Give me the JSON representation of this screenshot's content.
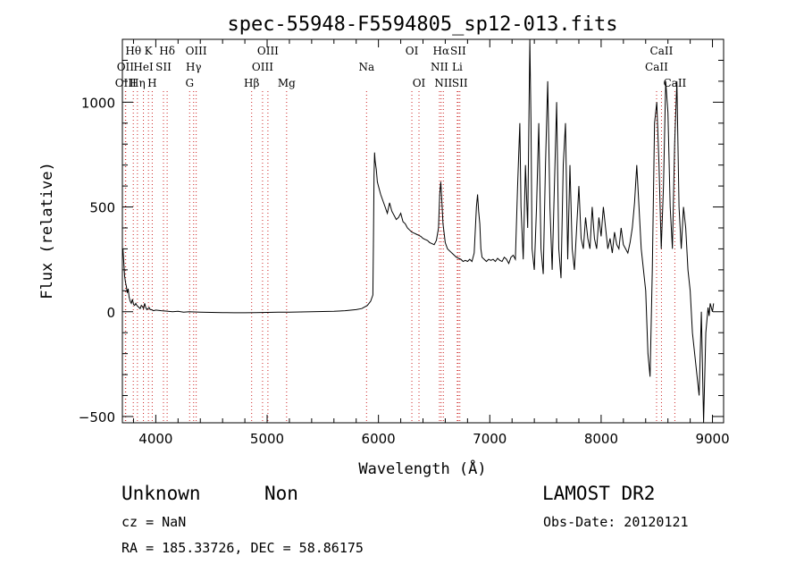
{
  "chart_data": {
    "type": "line",
    "title": "spec-55948-F5594805_sp12-013.fits",
    "xlabel": "Wavelength (Å)",
    "ylabel": "Flux (relative)",
    "xlim": [
      3700,
      9100
    ],
    "ylim": [
      -530,
      1300
    ],
    "x_ticks": [
      4000,
      5000,
      6000,
      7000,
      8000,
      9000
    ],
    "y_ticks": [
      -500,
      0,
      500,
      1000
    ],
    "x_tick_labels": [
      "4000",
      "5000",
      "6000",
      "7000",
      "8000",
      "9000"
    ],
    "y_tick_labels": [
      "−500",
      "0",
      "500",
      "1000"
    ],
    "grid": false,
    "legend": "none",
    "line_color": "#000000",
    "marker_color": "#cc2222",
    "spectrum_points": [
      [
        3705,
        300
      ],
      [
        3712,
        240
      ],
      [
        3720,
        170
      ],
      [
        3728,
        140
      ],
      [
        3736,
        120
      ],
      [
        3744,
        90
      ],
      [
        3752,
        110
      ],
      [
        3760,
        70
      ],
      [
        3770,
        50
      ],
      [
        3780,
        40
      ],
      [
        3790,
        60
      ],
      [
        3800,
        35
      ],
      [
        3810,
        30
      ],
      [
        3820,
        40
      ],
      [
        3830,
        30
      ],
      [
        3840,
        25
      ],
      [
        3850,
        20
      ],
      [
        3860,
        15
      ],
      [
        3870,
        30
      ],
      [
        3880,
        25
      ],
      [
        3890,
        15
      ],
      [
        3900,
        40
      ],
      [
        3910,
        20
      ],
      [
        3920,
        10
      ],
      [
        3930,
        15
      ],
      [
        3940,
        20
      ],
      [
        3950,
        10
      ],
      [
        3960,
        10
      ],
      [
        3980,
        5
      ],
      [
        4000,
        8
      ],
      [
        4050,
        5
      ],
      [
        4100,
        3
      ],
      [
        4150,
        0
      ],
      [
        4200,
        2
      ],
      [
        4250,
        -2
      ],
      [
        4300,
        0
      ],
      [
        4400,
        -2
      ],
      [
        4500,
        -3
      ],
      [
        4600,
        -4
      ],
      [
        4700,
        -5
      ],
      [
        4800,
        -5
      ],
      [
        4900,
        -4
      ],
      [
        5000,
        -3
      ],
      [
        5100,
        -2
      ],
      [
        5200,
        -2
      ],
      [
        5300,
        -1
      ],
      [
        5400,
        0
      ],
      [
        5500,
        1
      ],
      [
        5600,
        2
      ],
      [
        5700,
        5
      ],
      [
        5800,
        10
      ],
      [
        5850,
        15
      ],
      [
        5900,
        30
      ],
      [
        5930,
        50
      ],
      [
        5950,
        80
      ],
      [
        5955,
        320
      ],
      [
        5960,
        650
      ],
      [
        5965,
        760
      ],
      [
        5970,
        720
      ],
      [
        5980,
        680
      ],
      [
        5990,
        620
      ],
      [
        6000,
        600
      ],
      [
        6020,
        560
      ],
      [
        6040,
        530
      ],
      [
        6060,
        500
      ],
      [
        6080,
        470
      ],
      [
        6100,
        520
      ],
      [
        6120,
        480
      ],
      [
        6140,
        460
      ],
      [
        6160,
        440
      ],
      [
        6180,
        450
      ],
      [
        6200,
        470
      ],
      [
        6220,
        430
      ],
      [
        6240,
        420
      ],
      [
        6260,
        400
      ],
      [
        6280,
        390
      ],
      [
        6300,
        380
      ],
      [
        6320,
        375
      ],
      [
        6340,
        370
      ],
      [
        6360,
        365
      ],
      [
        6380,
        360
      ],
      [
        6400,
        350
      ],
      [
        6420,
        345
      ],
      [
        6440,
        340
      ],
      [
        6460,
        330
      ],
      [
        6480,
        325
      ],
      [
        6500,
        320
      ],
      [
        6520,
        340
      ],
      [
        6540,
        400
      ],
      [
        6550,
        560
      ],
      [
        6560,
        620
      ],
      [
        6570,
        520
      ],
      [
        6580,
        420
      ],
      [
        6600,
        330
      ],
      [
        6620,
        300
      ],
      [
        6640,
        290
      ],
      [
        6660,
        280
      ],
      [
        6680,
        270
      ],
      [
        6700,
        260
      ],
      [
        6720,
        255
      ],
      [
        6740,
        250
      ],
      [
        6760,
        240
      ],
      [
        6780,
        245
      ],
      [
        6800,
        240
      ],
      [
        6820,
        250
      ],
      [
        6840,
        240
      ],
      [
        6860,
        280
      ],
      [
        6880,
        500
      ],
      [
        6890,
        560
      ],
      [
        6900,
        480
      ],
      [
        6910,
        420
      ],
      [
        6920,
        300
      ],
      [
        6930,
        260
      ],
      [
        6950,
        250
      ],
      [
        6970,
        240
      ],
      [
        6990,
        250
      ],
      [
        7010,
        245
      ],
      [
        7030,
        250
      ],
      [
        7050,
        240
      ],
      [
        7070,
        255
      ],
      [
        7090,
        245
      ],
      [
        7110,
        240
      ],
      [
        7130,
        260
      ],
      [
        7150,
        250
      ],
      [
        7170,
        230
      ],
      [
        7190,
        260
      ],
      [
        7210,
        270
      ],
      [
        7230,
        250
      ],
      [
        7250,
        600
      ],
      [
        7270,
        900
      ],
      [
        7280,
        500
      ],
      [
        7300,
        250
      ],
      [
        7320,
        700
      ],
      [
        7340,
        400
      ],
      [
        7360,
        1300
      ],
      [
        7370,
        900
      ],
      [
        7380,
        300
      ],
      [
        7400,
        200
      ],
      [
        7420,
        500
      ],
      [
        7440,
        900
      ],
      [
        7460,
        300
      ],
      [
        7480,
        180
      ],
      [
        7500,
        700
      ],
      [
        7520,
        1100
      ],
      [
        7540,
        500
      ],
      [
        7560,
        200
      ],
      [
        7580,
        600
      ],
      [
        7600,
        1000
      ],
      [
        7620,
        300
      ],
      [
        7640,
        160
      ],
      [
        7660,
        700
      ],
      [
        7680,
        900
      ],
      [
        7700,
        250
      ],
      [
        7720,
        700
      ],
      [
        7740,
        300
      ],
      [
        7760,
        200
      ],
      [
        7780,
        400
      ],
      [
        7800,
        600
      ],
      [
        7820,
        350
      ],
      [
        7840,
        300
      ],
      [
        7860,
        450
      ],
      [
        7880,
        350
      ],
      [
        7900,
        300
      ],
      [
        7920,
        500
      ],
      [
        7940,
        350
      ],
      [
        7960,
        300
      ],
      [
        7980,
        450
      ],
      [
        8000,
        360
      ],
      [
        8020,
        500
      ],
      [
        8040,
        400
      ],
      [
        8060,
        300
      ],
      [
        8080,
        350
      ],
      [
        8100,
        280
      ],
      [
        8120,
        380
      ],
      [
        8140,
        320
      ],
      [
        8160,
        300
      ],
      [
        8180,
        400
      ],
      [
        8200,
        320
      ],
      [
        8220,
        300
      ],
      [
        8240,
        280
      ],
      [
        8260,
        330
      ],
      [
        8280,
        400
      ],
      [
        8300,
        520
      ],
      [
        8320,
        700
      ],
      [
        8340,
        500
      ],
      [
        8360,
        300
      ],
      [
        8380,
        200
      ],
      [
        8400,
        100
      ],
      [
        8420,
        -200
      ],
      [
        8440,
        -310
      ],
      [
        8460,
        200
      ],
      [
        8480,
        900
      ],
      [
        8500,
        1000
      ],
      [
        8520,
        700
      ],
      [
        8540,
        300
      ],
      [
        8560,
        600
      ],
      [
        8580,
        1100
      ],
      [
        8600,
        950
      ],
      [
        8620,
        500
      ],
      [
        8640,
        300
      ],
      [
        8660,
        800
      ],
      [
        8680,
        1100
      ],
      [
        8700,
        500
      ],
      [
        8720,
        300
      ],
      [
        8740,
        500
      ],
      [
        8760,
        400
      ],
      [
        8780,
        200
      ],
      [
        8800,
        100
      ],
      [
        8820,
        -100
      ],
      [
        8840,
        -200
      ],
      [
        8860,
        -300
      ],
      [
        8880,
        -400
      ],
      [
        8900,
        0
      ],
      [
        8920,
        -530
      ],
      [
        8940,
        -100
      ],
      [
        8960,
        20
      ],
      [
        8970,
        -20
      ],
      [
        8980,
        40
      ],
      [
        9000,
        0
      ],
      [
        9010,
        40
      ]
    ],
    "line_markers": [
      {
        "label": "Hθ",
        "wavelength": 3798,
        "row": 1
      },
      {
        "label": "OII",
        "wavelength": 3727,
        "row": 2
      },
      {
        "label": "OIII",
        "wavelength": 3730,
        "row": 3
      },
      {
        "label": "K",
        "wavelength": 3934,
        "row": 1
      },
      {
        "label": "HeI",
        "wavelength": 3889,
        "row": 2
      },
      {
        "label": "Hη",
        "wavelength": 3835,
        "row": 3
      },
      {
        "label": "SII",
        "wavelength": 4069,
        "row": 2
      },
      {
        "label": "H",
        "wavelength": 3968,
        "row": 3
      },
      {
        "label": "Hδ",
        "wavelength": 4102,
        "row": 1
      },
      {
        "label": "OIII",
        "wavelength": 4363,
        "row": 1
      },
      {
        "label": "Hγ",
        "wavelength": 4340,
        "row": 2
      },
      {
        "label": "G",
        "wavelength": 4304,
        "row": 3
      },
      {
        "label": "OIII",
        "wavelength": 5007,
        "row": 1
      },
      {
        "label": "OIII",
        "wavelength": 4959,
        "row": 2
      },
      {
        "label": "Hβ",
        "wavelength": 4861,
        "row": 3
      },
      {
        "label": "Mg",
        "wavelength": 5175,
        "row": 3
      },
      {
        "label": "Na",
        "wavelength": 5893,
        "row": 2
      },
      {
        "label": "OI",
        "wavelength": 6300,
        "row": 1
      },
      {
        "label": "OI",
        "wavelength": 6364,
        "row": 3
      },
      {
        "label": "Hα",
        "wavelength": 6563,
        "row": 1
      },
      {
        "label": "SII",
        "wavelength": 6716,
        "row": 1
      },
      {
        "label": "NII",
        "wavelength": 6548,
        "row": 2
      },
      {
        "label": "Li",
        "wavelength": 6708,
        "row": 2
      },
      {
        "label": "NII",
        "wavelength": 6583,
        "row": 3
      },
      {
        "label": "SII",
        "wavelength": 6731,
        "row": 3
      },
      {
        "label": "CaII",
        "wavelength": 8542,
        "row": 1
      },
      {
        "label": "CaII",
        "wavelength": 8498,
        "row": 2
      },
      {
        "label": "CaII",
        "wavelength": 8662,
        "row": 3
      }
    ]
  },
  "info": {
    "class_label": "Unknown",
    "subclass_label": "Non",
    "survey_label": "LAMOST DR2",
    "cz_line": "cz = NaN",
    "obs_date_line": "Obs-Date: 20120121",
    "radec_line": "RA = 185.33726, DEC =  58.86175"
  }
}
